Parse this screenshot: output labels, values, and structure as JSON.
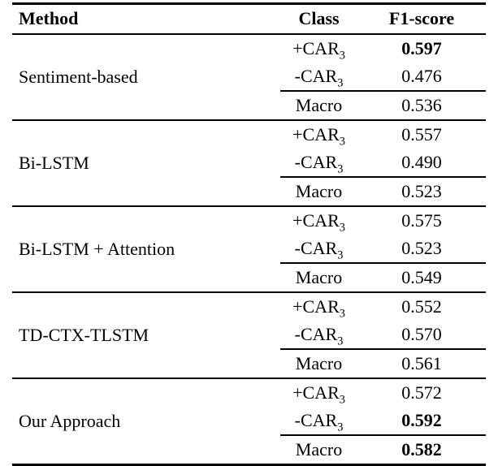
{
  "table": {
    "headers": [
      "Method",
      "Class",
      "F1-score"
    ],
    "text_color": "#000000",
    "background_color": "#ffffff",
    "groups": [
      {
        "method": "Sentiment-based",
        "rows": [
          {
            "class_base": "+CAR",
            "class_sub": "3",
            "f1": "0.597",
            "f1_bold": true,
            "rule_above": false
          },
          {
            "class_base": "-CAR",
            "class_sub": "3",
            "f1": "0.476",
            "f1_bold": false,
            "rule_above": false
          },
          {
            "class_base": "Macro",
            "class_sub": "",
            "f1": "0.536",
            "f1_bold": false,
            "rule_above": true
          }
        ]
      },
      {
        "method": "Bi-LSTM",
        "rows": [
          {
            "class_base": "+CAR",
            "class_sub": "3",
            "f1": "0.557",
            "f1_bold": false,
            "rule_above": false
          },
          {
            "class_base": "-CAR",
            "class_sub": "3",
            "f1": "0.490",
            "f1_bold": false,
            "rule_above": false
          },
          {
            "class_base": "Macro",
            "class_sub": "",
            "f1": "0.523",
            "f1_bold": false,
            "rule_above": true
          }
        ]
      },
      {
        "method": "Bi-LSTM + Attention",
        "rows": [
          {
            "class_base": "+CAR",
            "class_sub": "3",
            "f1": "0.575",
            "f1_bold": false,
            "rule_above": false
          },
          {
            "class_base": "-CAR",
            "class_sub": "3",
            "f1": "0.523",
            "f1_bold": false,
            "rule_above": false
          },
          {
            "class_base": "Macro",
            "class_sub": "",
            "f1": "0.549",
            "f1_bold": false,
            "rule_above": true
          }
        ]
      },
      {
        "method": "TD-CTX-TLSTM",
        "rows": [
          {
            "class_base": "+CAR",
            "class_sub": "3",
            "f1": "0.552",
            "f1_bold": false,
            "rule_above": false
          },
          {
            "class_base": "-CAR",
            "class_sub": "3",
            "f1": "0.570",
            "f1_bold": false,
            "rule_above": false
          },
          {
            "class_base": "Macro",
            "class_sub": "",
            "f1": "0.561",
            "f1_bold": false,
            "rule_above": true
          }
        ]
      },
      {
        "method": "Our Approach",
        "rows": [
          {
            "class_base": "+CAR",
            "class_sub": "3",
            "f1": "0.572",
            "f1_bold": false,
            "rule_above": false
          },
          {
            "class_base": "-CAR",
            "class_sub": "3",
            "f1": "0.592",
            "f1_bold": true,
            "rule_above": false
          },
          {
            "class_base": "Macro",
            "class_sub": "",
            "f1": "0.582",
            "f1_bold": true,
            "rule_above": true
          }
        ]
      }
    ]
  }
}
